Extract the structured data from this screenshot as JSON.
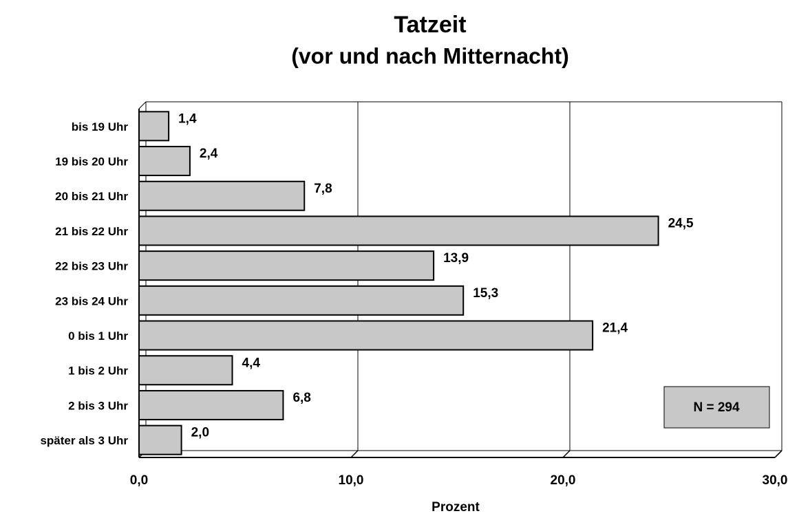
{
  "chart_data": {
    "type": "bar",
    "orientation": "horizontal",
    "title": "Tatzeit",
    "subtitle": "(vor und nach Mitternacht)",
    "x_label": "Prozent",
    "annotation": "N = 294",
    "categories": [
      "bis 19 Uhr",
      "19 bis 20 Uhr",
      "20 bis 21 Uhr",
      "21 bis 22 Uhr",
      "22 bis 23 Uhr",
      "23 bis 24 Uhr",
      "0 bis 1 Uhr",
      "1 bis 2 Uhr",
      "2 bis 3 Uhr",
      "später als 3 Uhr"
    ],
    "values": [
      1.4,
      2.4,
      7.8,
      24.5,
      13.9,
      15.3,
      21.4,
      4.4,
      6.8,
      2.0
    ],
    "value_labels": [
      "1,4",
      "2,4",
      "7,8",
      "24,5",
      "13,9",
      "15,3",
      "21,4",
      "4,4",
      "6,8",
      "2,0"
    ],
    "color": "#c8c8c8",
    "xlim": [
      0,
      30
    ],
    "xticks": [
      {
        "value": 0,
        "label": "0,0"
      },
      {
        "value": 10,
        "label": "10,0"
      },
      {
        "value": 20,
        "label": "20,0"
      },
      {
        "value": 30,
        "label": "30,0"
      }
    ],
    "grid": true
  }
}
